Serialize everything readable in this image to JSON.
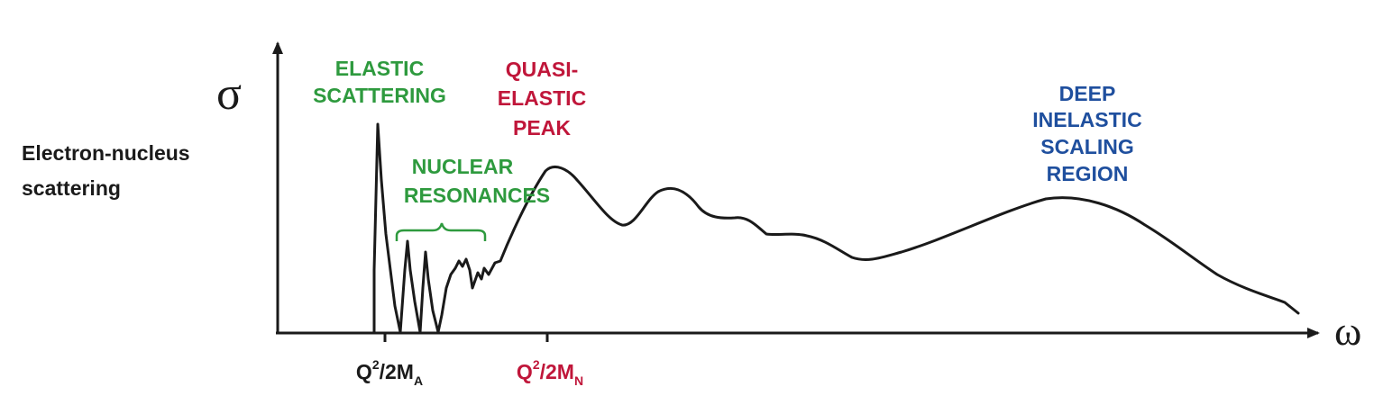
{
  "axes": {
    "y_symbol": "σ",
    "x_symbol": "ω"
  },
  "side_label": {
    "line1": "Electron-nucleus",
    "line2": "scattering"
  },
  "regions": {
    "elastic": {
      "line1": "ELASTIC",
      "line2": "SCATTERING"
    },
    "nuclear": {
      "line1": "NUCLEAR",
      "line2": "RESONANCES"
    },
    "quasi": {
      "line1": "QUASI-",
      "line2": "ELASTIC",
      "line3": "PEAK"
    },
    "deep": {
      "line1": "DEEP",
      "line2": "INELASTIC",
      "line3": "SCALING",
      "line4": "REGION"
    }
  },
  "ticks": {
    "q2_2ma": {
      "base": "Q",
      "sup": "2",
      "mid": "/2M",
      "sub": "A"
    },
    "q2_2mn": {
      "base": "Q",
      "sup": "2",
      "mid": "/2M",
      "sub": "N"
    }
  },
  "colors": {
    "green": "#2e9a3e",
    "red": "#c0163a",
    "blue": "#1f4f9e",
    "black": "#1a1a1a"
  }
}
